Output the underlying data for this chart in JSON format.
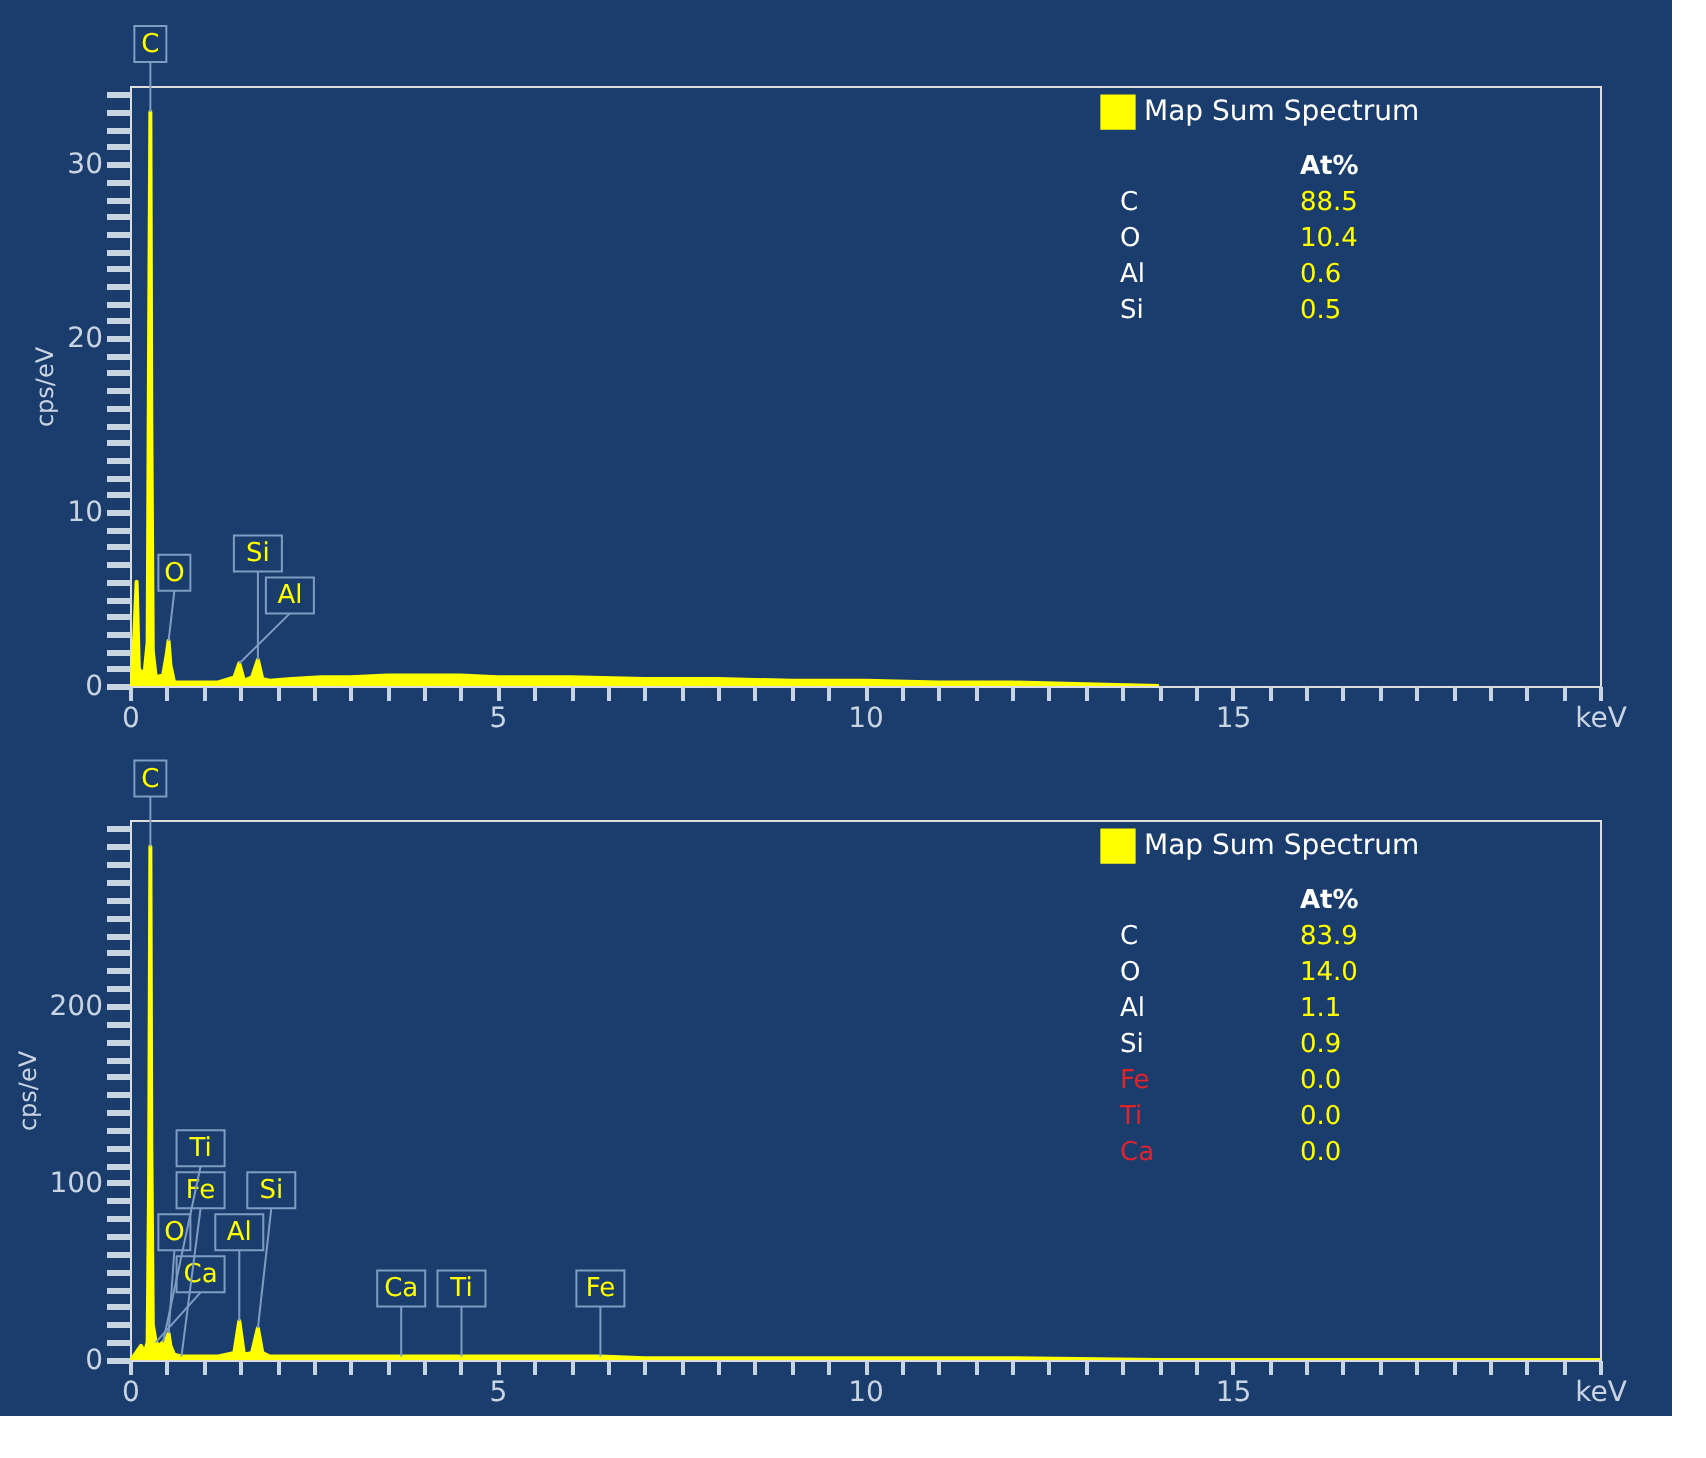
{
  "chart_data": [
    {
      "type": "area",
      "ylabel": "cps/eV",
      "xlim": [
        0,
        20
      ],
      "ylim": [
        0,
        34.5
      ],
      "grid": false,
      "legend": "top right",
      "xticks": [
        0,
        {
          "value": 0.5,
          "label": null
        },
        {
          "value": 1,
          "label": null
        },
        {
          "value": 1.5,
          "label": null
        },
        {
          "value": 2,
          "label": null
        },
        {
          "value": 2.5,
          "label": null
        },
        {
          "value": 3,
          "label": null
        },
        {
          "value": 3.5,
          "label": null
        },
        {
          "value": 4,
          "label": null
        },
        {
          "value": 4.5,
          "label": null
        },
        5,
        {
          "value": 5.5,
          "label": null
        },
        {
          "value": 6,
          "label": null
        },
        {
          "value": 6.5,
          "label": null
        },
        {
          "value": 7,
          "label": null
        },
        {
          "value": 7.5,
          "label": null
        },
        {
          "value": 8,
          "label": null
        },
        {
          "value": 8.5,
          "label": null
        },
        {
          "value": 9,
          "label": null
        },
        {
          "value": 9.5,
          "label": null
        },
        10,
        {
          "value": 10.5,
          "label": null
        },
        {
          "value": 11,
          "label": null
        },
        {
          "value": 11.5,
          "label": null
        },
        {
          "value": 12,
          "label": null
        },
        {
          "value": 12.5,
          "label": null
        },
        {
          "value": 13,
          "label": null
        },
        {
          "value": 13.5,
          "label": null
        },
        {
          "value": 14,
          "label": null
        },
        {
          "value": 14.5,
          "label": null
        },
        15,
        {
          "value": 15.5,
          "label": null
        },
        {
          "value": 16,
          "label": null
        },
        {
          "value": 16.5,
          "label": null
        },
        {
          "value": 17,
          "label": null
        },
        {
          "value": 17.5,
          "label": null
        },
        {
          "value": 18,
          "label": null
        },
        {
          "value": 18.5,
          "label": null
        },
        {
          "value": 19,
          "label": null
        },
        {
          "value": 19.5,
          "label": null
        },
        {
          "value": 20,
          "label": "keV"
        }
      ],
      "yticks": [
        0,
        {
          "value": 1,
          "label": null
        },
        {
          "value": 2,
          "label": null
        },
        {
          "value": 3,
          "label": null
        },
        {
          "value": 4,
          "label": null
        },
        {
          "value": 5,
          "label": null
        },
        {
          "value": 6,
          "label": null
        },
        {
          "value": 7,
          "label": null
        },
        {
          "value": 8,
          "label": null
        },
        {
          "value": 9,
          "label": null
        },
        10,
        {
          "value": 11,
          "label": null
        },
        {
          "value": 12,
          "label": null
        },
        {
          "value": 13,
          "label": null
        },
        {
          "value": 14,
          "label": null
        },
        {
          "value": 15,
          "label": null
        },
        {
          "value": 16,
          "label": null
        },
        {
          "value": 17,
          "label": null
        },
        {
          "value": 18,
          "label": null
        },
        {
          "value": 19,
          "label": null
        },
        20,
        {
          "value": 21,
          "label": null
        },
        {
          "value": 22,
          "label": null
        },
        {
          "value": 23,
          "label": null
        },
        {
          "value": 24,
          "label": null
        },
        {
          "value": 25,
          "label": null
        },
        {
          "value": 26,
          "label": null
        },
        {
          "value": 27,
          "label": null
        },
        {
          "value": 28,
          "label": null
        },
        {
          "value": 29,
          "label": null
        },
        30,
        {
          "value": 31,
          "label": null
        },
        {
          "value": 32,
          "label": null
        },
        {
          "value": 33,
          "label": null
        },
        {
          "value": 34,
          "label": null
        }
      ],
      "series": [
        {
          "name": "Map Sum Spectrum",
          "color": "#ffff00",
          "x": [
            0,
            0.03,
            0.06,
            0.09,
            0.12,
            0.15,
            0.2,
            0.24,
            0.26,
            0.277,
            0.29,
            0.31,
            0.35,
            0.45,
            0.5,
            0.525,
            0.55,
            0.6,
            0.8,
            1.2,
            1.42,
            1.487,
            1.55,
            1.66,
            1.74,
            1.8,
            1.9,
            2.2,
            2.6,
            3,
            3.5,
            4,
            4.5,
            5,
            6,
            7,
            8,
            9,
            10,
            11,
            12,
            13,
            14
          ],
          "values": [
            0,
            0.5,
            3,
            6,
            1,
            0.8,
            0.8,
            2.5,
            20,
            33,
            15,
            2,
            0.5,
            0.6,
            1.8,
            2.6,
            1.2,
            0.2,
            0.2,
            0.2,
            0.5,
            1.3,
            0.3,
            0.5,
            1.5,
            0.4,
            0.3,
            0.4,
            0.5,
            0.5,
            0.6,
            0.6,
            0.6,
            0.5,
            0.5,
            0.4,
            0.4,
            0.3,
            0.3,
            0.2,
            0.2,
            0.1,
            0
          ]
        }
      ],
      "annotations": [
        {
          "text": "C",
          "x": 0.277,
          "y": 33
        },
        {
          "text": "O",
          "x": 0.525,
          "y": 2.6
        },
        {
          "text": "Al",
          "x": 1.487,
          "y": 1.3
        },
        {
          "text": "Si",
          "x": 1.74,
          "y": 1.5
        },
        "At%",
        "C",
        "88.5",
        "O",
        "10.4",
        "Al",
        "0.6",
        "Si",
        "0.5"
      ]
    },
    {
      "type": "area",
      "ylabel": "cps/eV",
      "xlim": [
        0,
        20
      ],
      "ylim": [
        0,
        305
      ],
      "grid": false,
      "legend": "top right",
      "xticks": [
        0,
        {
          "value": 0.5,
          "label": null
        },
        {
          "value": 1,
          "label": null
        },
        {
          "value": 1.5,
          "label": null
        },
        {
          "value": 2,
          "label": null
        },
        {
          "value": 2.5,
          "label": null
        },
        {
          "value": 3,
          "label": null
        },
        {
          "value": 3.5,
          "label": null
        },
        {
          "value": 4,
          "label": null
        },
        {
          "value": 4.5,
          "label": null
        },
        5,
        {
          "value": 5.5,
          "label": null
        },
        {
          "value": 6,
          "label": null
        },
        {
          "value": 6.5,
          "label": null
        },
        {
          "value": 7,
          "label": null
        },
        {
          "value": 7.5,
          "label": null
        },
        {
          "value": 8,
          "label": null
        },
        {
          "value": 8.5,
          "label": null
        },
        {
          "value": 9,
          "label": null
        },
        {
          "value": 9.5,
          "label": null
        },
        10,
        {
          "value": 10.5,
          "label": null
        },
        {
          "value": 11,
          "label": null
        },
        {
          "value": 11.5,
          "label": null
        },
        {
          "value": 12,
          "label": null
        },
        {
          "value": 12.5,
          "label": null
        },
        {
          "value": 13,
          "label": null
        },
        {
          "value": 13.5,
          "label": null
        },
        {
          "value": 14,
          "label": null
        },
        {
          "value": 14.5,
          "label": null
        },
        15,
        {
          "value": 15.5,
          "label": null
        },
        {
          "value": 16,
          "label": null
        },
        {
          "value": 16.5,
          "label": null
        },
        {
          "value": 17,
          "label": null
        },
        {
          "value": 17.5,
          "label": null
        },
        {
          "value": 18,
          "label": null
        },
        {
          "value": 18.5,
          "label": null
        },
        {
          "value": 19,
          "label": null
        },
        {
          "value": 19.5,
          "label": null
        },
        {
          "value": 20,
          "label": "keV"
        }
      ],
      "yticks": [
        0,
        {
          "value": 10,
          "label": null
        },
        {
          "value": 20,
          "label": null
        },
        {
          "value": 30,
          "label": null
        },
        {
          "value": 40,
          "label": null
        },
        {
          "value": 50,
          "label": null
        },
        {
          "value": 60,
          "label": null
        },
        {
          "value": 70,
          "label": null
        },
        {
          "value": 80,
          "label": null
        },
        {
          "value": 90,
          "label": null
        },
        100,
        {
          "value": 110,
          "label": null
        },
        {
          "value": 120,
          "label": null
        },
        {
          "value": 130,
          "label": null
        },
        {
          "value": 140,
          "label": null
        },
        {
          "value": 150,
          "label": null
        },
        {
          "value": 160,
          "label": null
        },
        {
          "value": 170,
          "label": null
        },
        {
          "value": 180,
          "label": null
        },
        {
          "value": 190,
          "label": null
        },
        200,
        {
          "value": 210,
          "label": null
        },
        {
          "value": 220,
          "label": null
        },
        {
          "value": 230,
          "label": null
        },
        {
          "value": 240,
          "label": null
        },
        {
          "value": 250,
          "label": null
        },
        {
          "value": 260,
          "label": null
        },
        {
          "value": 270,
          "label": null
        },
        {
          "value": 280,
          "label": null
        },
        {
          "value": 290,
          "label": null
        },
        {
          "value": 300,
          "label": null
        }
      ],
      "series": [
        {
          "name": "Map Sum Spectrum",
          "color": "#ffff00",
          "x": [
            0,
            0.05,
            0.1,
            0.15,
            0.2,
            0.24,
            0.26,
            0.277,
            0.29,
            0.31,
            0.35,
            0.4,
            0.45,
            0.5,
            0.525,
            0.55,
            0.6,
            0.7,
            0.8,
            1.2,
            1.42,
            1.487,
            1.55,
            1.66,
            1.74,
            1.8,
            1.9,
            2.5,
            3,
            3.69,
            4,
            4.51,
            5,
            6,
            6.4,
            7,
            8,
            9,
            10,
            12,
            14,
            16,
            20
          ],
          "values": [
            0,
            2,
            5,
            8,
            4,
            10,
            100,
            290,
            120,
            20,
            10,
            8,
            10,
            12,
            15,
            8,
            3,
            2,
            2,
            2,
            4,
            22,
            3,
            4,
            18,
            4,
            2,
            2,
            2,
            2,
            2,
            2,
            2,
            2,
            2,
            1,
            1,
            1,
            1,
            1,
            0,
            0,
            0
          ]
        }
      ],
      "annotations": [
        {
          "text": "C",
          "x": 0.277,
          "y": 290
        },
        {
          "text": "Ca",
          "x": 0.35,
          "y": 10
        },
        {
          "text": "O",
          "x": 0.525,
          "y": 15
        },
        {
          "text": "Fe",
          "x": 0.7,
          "y": 2
        },
        {
          "text": "Ti",
          "x": 0.45,
          "y": 10
        },
        {
          "text": "Al",
          "x": 1.487,
          "y": 22
        },
        {
          "text": "Si",
          "x": 1.74,
          "y": 18
        },
        {
          "text": "Ca",
          "x": 3.69,
          "y": 2
        },
        {
          "text": "Ti",
          "x": 4.51,
          "y": 2
        },
        {
          "text": "Fe",
          "x": 6.4,
          "y": 2
        },
        "At%",
        "C",
        "83.9",
        "O",
        "14.0",
        "Al",
        "1.1",
        "Si",
        "0.9",
        "Fe",
        "0.0",
        "Ti",
        "0.0",
        "Ca",
        "0.0"
      ]
    }
  ]
}
